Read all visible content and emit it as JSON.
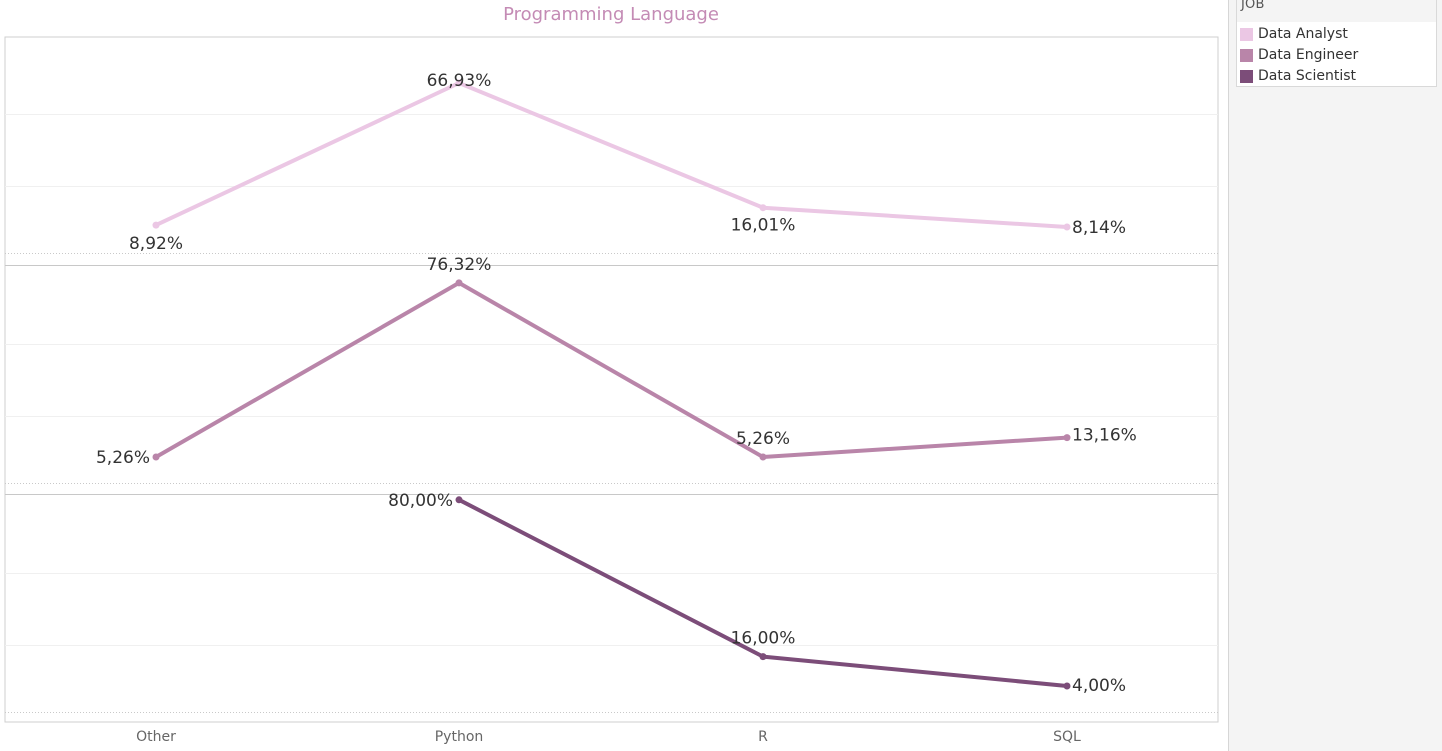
{
  "chart_data": {
    "type": "line",
    "title": "Programming Language",
    "categories": [
      "Other",
      "Python",
      "R",
      "SQL"
    ],
    "legend": {
      "title": "JOB",
      "placement": "top-right"
    },
    "series": [
      {
        "name": "Data Analyst",
        "color": "#ebc7e4",
        "values": [
          8.92,
          66.93,
          16.01,
          8.14
        ],
        "labels": [
          "8,92%",
          "66,93%",
          "16,01%",
          "8,14%"
        ]
      },
      {
        "name": "Data Engineer",
        "color": "#b985a9",
        "values": [
          5.26,
          76.32,
          5.26,
          13.16
        ],
        "labels": [
          "5,26%",
          "76,32%",
          "5,26%",
          "13,16%"
        ]
      },
      {
        "name": "Data Scientist",
        "color": "#7c4d79",
        "values": [
          null,
          80.0,
          16.0,
          4.0
        ],
        "labels": [
          "",
          "80,00%",
          "16,00%",
          "4,00%"
        ]
      }
    ],
    "grid": true
  }
}
